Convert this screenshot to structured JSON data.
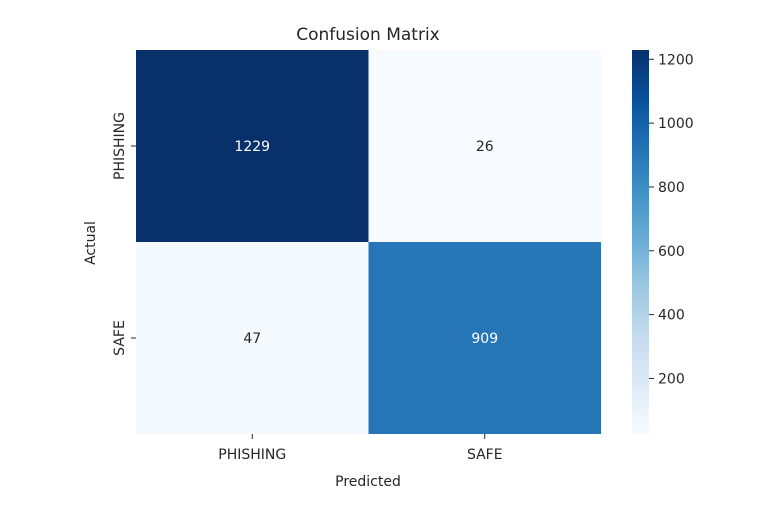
{
  "chart_data": {
    "type": "heatmap",
    "title": "Confusion Matrix",
    "xlabel": "Predicted",
    "ylabel": "Actual",
    "x_categories": [
      "PHISHING",
      "SAFE"
    ],
    "y_categories": [
      "PHISHING",
      "SAFE"
    ],
    "values": [
      [
        1229,
        26
      ],
      [
        47,
        909
      ]
    ],
    "colormap": "Blues",
    "colorbar": {
      "range": [
        26,
        1229
      ],
      "ticks": [
        200,
        400,
        600,
        800,
        1000,
        1200
      ],
      "tick_labels": [
        "200",
        "400",
        "600",
        "800",
        "1000",
        "1200"
      ]
    },
    "grid": false,
    "colors": {
      "low": "#f7fbff",
      "high": "#08306b",
      "text_dark": "#262626",
      "text_light": "#ffffff"
    }
  }
}
